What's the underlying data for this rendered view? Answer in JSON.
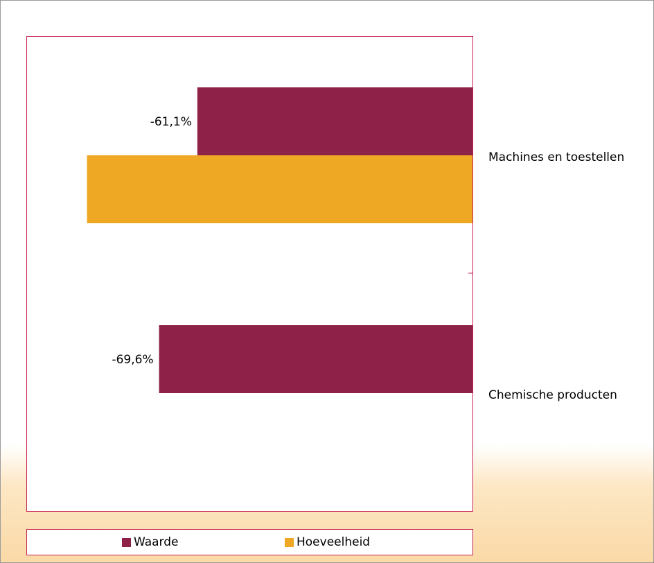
{
  "chart_data": {
    "type": "bar",
    "orientation": "horizontal",
    "categories": [
      "Machines en toestellen",
      "Chemische producten"
    ],
    "series": [
      {
        "name": "Waarde",
        "color": "#8d2148",
        "values": [
          -61.1,
          -69.6
        ],
        "labels": [
          "-61,1%",
          "-69,6%"
        ]
      },
      {
        "name": "Hoeveelheid",
        "color": "#efa823",
        "values": [
          -85.6,
          null
        ],
        "labels": [
          "",
          ""
        ]
      }
    ],
    "xlim": [
      -100,
      0
    ],
    "legend": "bottom",
    "grid": false,
    "title": "",
    "xlabel": "",
    "ylabel": ""
  }
}
